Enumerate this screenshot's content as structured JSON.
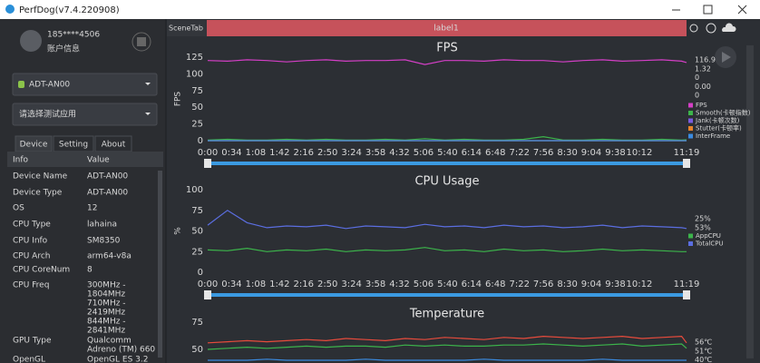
{
  "window": {
    "title": "PerfDog(v7.4.220908)"
  },
  "account": {
    "user": "185****4506",
    "info": "账户信息"
  },
  "device": "ADT-AN00",
  "app_select": "请选择测试应用",
  "tabs": [
    "Device",
    "Setting",
    "About"
  ],
  "table": {
    "header": [
      "Info",
      "Value"
    ],
    "rows": [
      [
        "Device Name",
        [
          "ADT-AN00"
        ]
      ],
      [
        "Device Type",
        [
          "ADT-AN00"
        ]
      ],
      [
        "OS",
        [
          "12"
        ]
      ],
      [
        "CPU Type",
        [
          "lahaina"
        ]
      ],
      [
        "CPU Info",
        [
          "SM8350"
        ]
      ],
      [
        "CPU Arch",
        [
          "arm64-v8a"
        ]
      ],
      [
        "CPU CoreNum",
        [
          "8"
        ]
      ],
      [
        "CPU Freq",
        [
          "300MHz -",
          "1804MHz",
          "710MHz -",
          "2419MHz",
          "844MHz -",
          "2841MHz"
        ]
      ],
      [
        "GPU Type",
        [
          "Qualcomm",
          "Adreno (TM) 660"
        ]
      ],
      [
        "OpenGL",
        [
          "OpenGL ES 3.2"
        ]
      ]
    ]
  },
  "scene_tab": {
    "label": "SceneTab",
    "tab": "label1"
  },
  "chart_data": [
    {
      "type": "line",
      "title": "FPS",
      "ylabel": "FPS",
      "xlim": [
        0,
        679
      ],
      "ylim": [
        0,
        125
      ],
      "yticks": [
        0,
        25,
        50,
        75,
        100,
        125
      ],
      "xticks": [
        {
          "value": 0,
          "label": "0:00"
        },
        {
          "value": 34,
          "label": "0:34"
        },
        {
          "value": 68,
          "label": "1:08"
        },
        {
          "value": 102,
          "label": "1:42"
        },
        {
          "value": 136,
          "label": "2:16"
        },
        {
          "value": 170,
          "label": "2:50"
        },
        {
          "value": 204,
          "label": "3:24"
        },
        {
          "value": 238,
          "label": "3:58"
        },
        {
          "value": 272,
          "label": "4:32"
        },
        {
          "value": 306,
          "label": "5:06"
        },
        {
          "value": 340,
          "label": "5:40"
        },
        {
          "value": 374,
          "label": "6:14"
        },
        {
          "value": 408,
          "label": "6:48"
        },
        {
          "value": 442,
          "label": "7:22"
        },
        {
          "value": 476,
          "label": "7:56"
        },
        {
          "value": 510,
          "label": "8:30"
        },
        {
          "value": 544,
          "label": "9:04"
        },
        {
          "value": 578,
          "label": "9:38"
        },
        {
          "value": 612,
          "label": "10:12"
        },
        {
          "value": 679,
          "label": "11:19"
        }
      ],
      "x": [
        0,
        28,
        56,
        84,
        112,
        140,
        168,
        196,
        224,
        252,
        280,
        308,
        336,
        364,
        392,
        420,
        448,
        476,
        504,
        532,
        560,
        588,
        616,
        644,
        672,
        679
      ],
      "series": [
        {
          "name": "FPS",
          "color": "#d43fc6",
          "latest": "116.9",
          "values": [
            120,
            119,
            121,
            120,
            118,
            120,
            121,
            119,
            120,
            120,
            121,
            114,
            120,
            120,
            119,
            121,
            120,
            120,
            118,
            120,
            121,
            119,
            120,
            121,
            119,
            117
          ]
        },
        {
          "name": "Smooth(卡顿指数)",
          "color": "#3cb44b",
          "latest": "1.32",
          "values": [
            1,
            2,
            1,
            1,
            2,
            1,
            2,
            1,
            1,
            2,
            1,
            3,
            1,
            2,
            1,
            1,
            2,
            6,
            1,
            1,
            2,
            1,
            1,
            2,
            1,
            1.32
          ]
        },
        {
          "name": "Jank(卡顿次数)",
          "color": "#7a5be0",
          "latest": "0",
          "values": [
            0,
            0,
            0,
            0,
            0,
            0,
            0,
            0,
            0,
            0,
            0,
            0,
            0,
            0,
            0,
            0,
            0,
            0,
            0,
            0,
            0,
            0,
            0,
            0,
            0,
            0
          ]
        },
        {
          "name": "Stutter(卡顿率)",
          "color": "#e8822a",
          "latest": "0.00",
          "values": [
            0,
            0,
            0,
            0,
            0,
            0,
            0,
            0,
            0,
            0,
            0,
            0,
            0,
            0,
            0,
            0,
            0,
            0,
            0,
            0,
            0,
            0,
            0,
            0,
            0,
            0
          ]
        },
        {
          "name": "InterFrame",
          "color": "#3b8be0",
          "latest": "0",
          "values": [
            0,
            0,
            0,
            0,
            0,
            0,
            0,
            0,
            0,
            0,
            0,
            0,
            0,
            0,
            0,
            0,
            0,
            0,
            0,
            0,
            0,
            0,
            0,
            0,
            0,
            0
          ]
        }
      ]
    },
    {
      "type": "line",
      "title": "CPU Usage",
      "ylabel": "%",
      "xlim": [
        0,
        679
      ],
      "ylim": [
        0,
        100
      ],
      "yticks": [
        0,
        25,
        50,
        75,
        100
      ],
      "xticks": [
        {
          "value": 0,
          "label": "0:00"
        },
        {
          "value": 34,
          "label": "0:34"
        },
        {
          "value": 68,
          "label": "1:08"
        },
        {
          "value": 102,
          "label": "1:42"
        },
        {
          "value": 136,
          "label": "2:16"
        },
        {
          "value": 170,
          "label": "2:50"
        },
        {
          "value": 204,
          "label": "3:24"
        },
        {
          "value": 238,
          "label": "3:58"
        },
        {
          "value": 272,
          "label": "4:32"
        },
        {
          "value": 306,
          "label": "5:06"
        },
        {
          "value": 340,
          "label": "5:40"
        },
        {
          "value": 374,
          "label": "6:14"
        },
        {
          "value": 408,
          "label": "6:48"
        },
        {
          "value": 442,
          "label": "7:22"
        },
        {
          "value": 476,
          "label": "7:56"
        },
        {
          "value": 510,
          "label": "8:30"
        },
        {
          "value": 544,
          "label": "9:04"
        },
        {
          "value": 578,
          "label": "9:38"
        },
        {
          "value": 612,
          "label": "10:12"
        },
        {
          "value": 679,
          "label": "11:19"
        }
      ],
      "x": [
        0,
        28,
        56,
        84,
        112,
        140,
        168,
        196,
        224,
        252,
        280,
        308,
        336,
        364,
        392,
        420,
        448,
        476,
        504,
        532,
        560,
        588,
        616,
        644,
        672,
        679
      ],
      "series": [
        {
          "name": "AppCPU",
          "color": "#3cb44b",
          "latest": "25%",
          "values": [
            27,
            26,
            29,
            25,
            27,
            26,
            28,
            25,
            27,
            26,
            27,
            30,
            26,
            27,
            25,
            28,
            26,
            27,
            25,
            26,
            28,
            26,
            27,
            26,
            25,
            25
          ]
        },
        {
          "name": "TotalCPU",
          "color": "#5b6ee1",
          "latest": "53%",
          "values": [
            57,
            75,
            60,
            54,
            56,
            55,
            57,
            53,
            56,
            55,
            54,
            58,
            55,
            56,
            54,
            57,
            55,
            56,
            54,
            55,
            57,
            54,
            56,
            55,
            54,
            53
          ]
        }
      ]
    },
    {
      "type": "line",
      "title": "Temperature",
      "xlim": [
        0,
        679
      ],
      "ylim": [
        0,
        75
      ],
      "yticks": [
        50,
        75
      ],
      "x": [
        0,
        28,
        56,
        84,
        112,
        140,
        168,
        196,
        224,
        252,
        280,
        308,
        336,
        364,
        392,
        420,
        448,
        476,
        504,
        532,
        560,
        588,
        616,
        644,
        672,
        679
      ],
      "series": [
        {
          "color": "#e84b3c",
          "latest": "56℃",
          "values": [
            56,
            57,
            58,
            57,
            58,
            59,
            58,
            60,
            59,
            58,
            60,
            59,
            61,
            60,
            59,
            61,
            60,
            62,
            61,
            60,
            61,
            62,
            60,
            61,
            62,
            56
          ]
        },
        {
          "color": "#3cb44b",
          "latest": "51℃",
          "values": [
            50,
            51,
            52,
            51,
            52,
            53,
            52,
            53,
            53,
            52,
            54,
            53,
            54,
            53,
            53,
            54,
            54,
            55,
            54,
            53,
            54,
            55,
            53,
            54,
            55,
            51
          ]
        },
        {
          "color": "#3b8be0",
          "latest": "40℃",
          "values": [
            40,
            40,
            40,
            41,
            40,
            40,
            40,
            40,
            41,
            40,
            40,
            40,
            40,
            40,
            41,
            40,
            40,
            40,
            40,
            40,
            41,
            40,
            40,
            40,
            40,
            40
          ]
        }
      ]
    }
  ]
}
